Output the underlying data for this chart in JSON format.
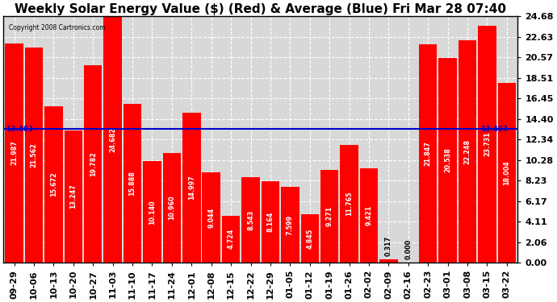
{
  "title": "Weekly Solar Energy Value ($) (Red) & Average (Blue) Fri Mar 28 07:40",
  "copyright": "Copyright 2008 Cartronics.com",
  "categories": [
    "09-29",
    "10-06",
    "10-13",
    "10-20",
    "10-27",
    "11-03",
    "11-10",
    "11-17",
    "11-24",
    "12-01",
    "12-08",
    "12-15",
    "12-22",
    "12-29",
    "01-05",
    "01-12",
    "01-19",
    "01-26",
    "02-02",
    "02-09",
    "02-16",
    "02-23",
    "03-01",
    "03-08",
    "03-15",
    "03-22"
  ],
  "values": [
    21.987,
    21.562,
    15.672,
    13.247,
    19.782,
    24.682,
    15.888,
    10.14,
    10.96,
    14.997,
    9.044,
    4.724,
    8.543,
    8.164,
    7.599,
    4.845,
    9.271,
    11.765,
    9.421,
    0.317,
    0.0,
    21.847,
    20.538,
    22.248,
    23.731,
    18.004
  ],
  "average": 13.403,
  "bar_color": "#ff0000",
  "avg_line_color": "#0000cc",
  "background_color": "#ffffff",
  "plot_bg_color": "#d8d8d8",
  "grid_color": "#ffffff",
  "yticks": [
    0.0,
    2.06,
    4.11,
    6.17,
    8.23,
    10.28,
    12.34,
    14.4,
    16.45,
    18.51,
    20.57,
    22.63,
    24.68
  ],
  "ylim": [
    0,
    24.68
  ],
  "title_fontsize": 11,
  "label_fontsize": 5.8,
  "tick_fontsize": 8,
  "copyright_fontsize": 5.5
}
